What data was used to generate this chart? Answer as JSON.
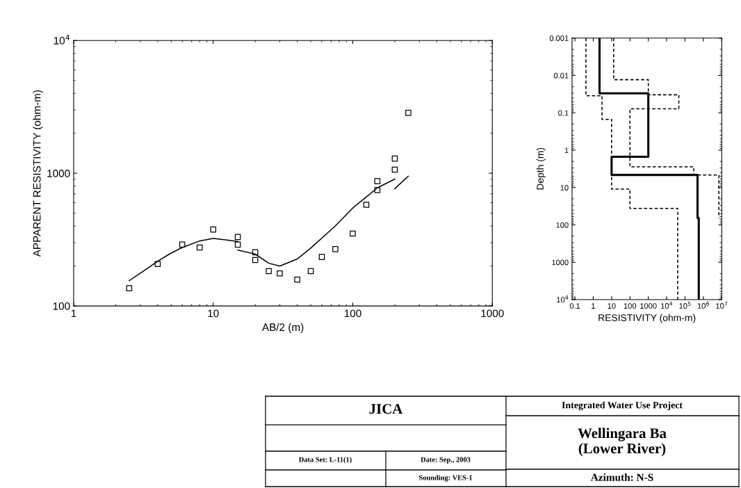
{
  "chart_data": [
    {
      "type": "scatter",
      "xlabel": "AB/2 (m)",
      "ylabel": "APPARENT RESISTIVITY (ohm-m)",
      "log": "xy",
      "grid": false,
      "legend": false,
      "xlim": [
        1,
        1000
      ],
      "xticks": [
        1,
        10,
        100,
        1000
      ],
      "ylim": [
        100,
        10000
      ],
      "yticks": [
        100,
        1000,
        {
          "value": 10000,
          "label": "10$^{4}$"
        }
      ],
      "series": [
        {
          "marker": "square",
          "color": "#000000",
          "x": [
            2.5,
            4,
            6,
            8,
            10,
            15,
            15,
            20,
            20,
            25,
            30,
            40,
            50,
            60,
            75,
            100,
            125,
            150,
            150,
            200,
            200,
            250
          ],
          "values": [
            136,
            207,
            290,
            276,
            377,
            331,
            290,
            254,
            222,
            183,
            176,
            158,
            183,
            234,
            268,
            351,
            579,
            871,
            747,
            1290,
            1064,
            2850
          ]
        },
        {
          "type": "line",
          "line_style": "solid",
          "color": "#000000",
          "x": [
            2.5,
            3.06,
            4,
            4.85,
            6,
            7.94,
            10,
            12.2,
            15
          ],
          "values": [
            155,
            179,
            217,
            246,
            276,
            308,
            323,
            315,
            306
          ]
        },
        {
          "type": "line",
          "line_style": "solid",
          "color": "#000000",
          "x": [
            15,
            20,
            25,
            30,
            40,
            50,
            75,
            100,
            125,
            150,
            200
          ],
          "values": [
            264,
            246,
            210,
            200,
            226,
            273,
            401,
            547,
            662,
            776,
            904
          ]
        },
        {
          "type": "line",
          "line_style": "solid",
          "color": "#000000",
          "x": [
            200,
            250
          ],
          "values": [
            765,
            949
          ]
        }
      ],
      "annotations": [
        "JICA",
        "Data Set: L-11(1)",
        "Date: Sep., 2003",
        "Sounding: VES-1",
        "Integrated Water Use Project",
        "Wellingara Ba\n(Lower River)",
        "Azimuth: N-S"
      ]
    },
    {
      "type": "line",
      "xlabel": "RESISTIVITY (ohm-m)",
      "ylabel": "Depth (m)",
      "log": "xy",
      "grid": false,
      "legend": false,
      "xlim": [
        0.07,
        10000000
      ],
      "xticks": [
        0.1,
        1,
        10,
        100,
        1000,
        {
          "value": 10000,
          "label": "10$^{4}$"
        },
        {
          "value": 100000,
          "label": "10$^{5}$"
        },
        {
          "value": 1000000,
          "label": "10$^{6}$"
        },
        {
          "value": 10000000,
          "label": "10$^{7}$"
        }
      ],
      "ylim": [
        10000,
        0.001
      ],
      "yticks": [
        0.001,
        0.01,
        0.1,
        1,
        10,
        100,
        1000,
        {
          "value": 10000,
          "label": "10$^{4}$"
        }
      ],
      "series": [
        {
          "line_style": "dashed",
          "color": "#000000",
          "x": [
            0.4,
            0.4,
            3,
            3,
            10,
            10,
            100,
            100,
            40000,
            40000
          ],
          "values": [
            0.001,
            0.035,
            0.035,
            0.15,
            0.15,
            11,
            11,
            36,
            36,
            10000
          ]
        },
        {
          "line_style": "dashed",
          "color": "#000000",
          "x": [
            13,
            13,
            1000,
            1000,
            46000,
            46000,
            100,
            100,
            300000,
            300000,
            7000000,
            7000000
          ],
          "values": [
            0.001,
            0.013,
            0.013,
            0.033,
            0.033,
            0.078,
            0.078,
            2.8,
            2.8,
            4.6,
            4.6,
            65
          ]
        },
        {
          "type": "step",
          "line_style": "solid",
          "color": "#000000",
          "x": [
            2.2,
            2.2,
            1000,
            1000,
            10,
            10,
            480000,
            480000,
            560000,
            560000
          ],
          "values": [
            0.001,
            0.03,
            0.03,
            1.5,
            1.5,
            4.6,
            4.6,
            65,
            65,
            10000
          ]
        }
      ]
    }
  ]
}
